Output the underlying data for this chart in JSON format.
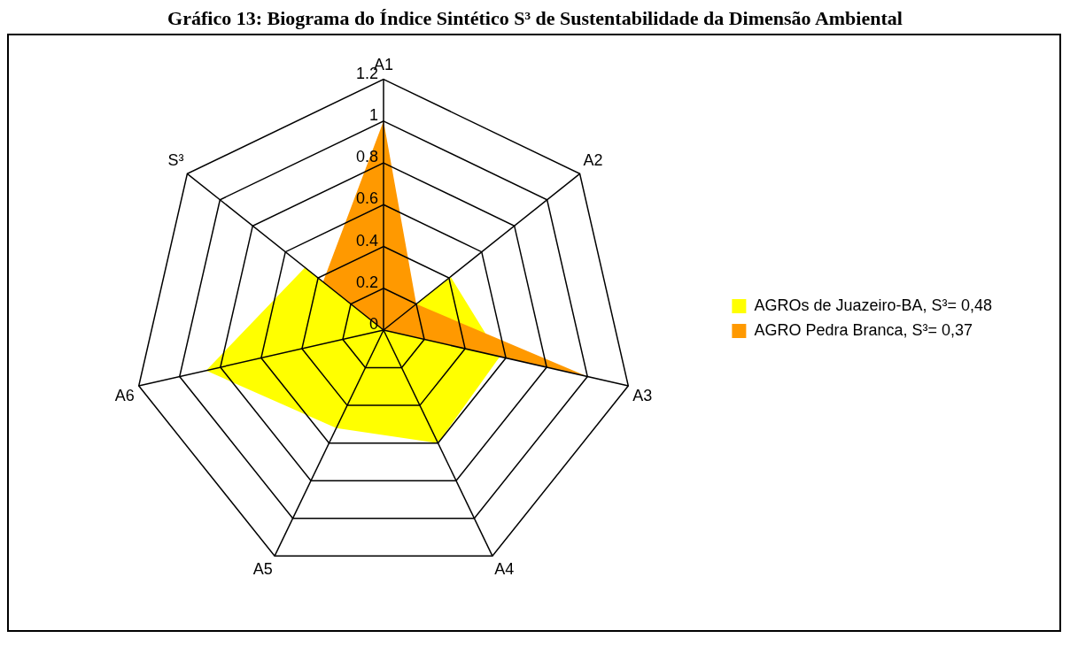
{
  "chart_data": {
    "type": "radar",
    "title": "Gráfico 13: Biograma do Índice Sintético S³ de Sustentabilidade da Dimensão Ambiental",
    "categories": [
      "A1",
      "A2",
      "A3",
      "A4",
      "A5",
      "A6",
      "S³"
    ],
    "series": [
      {
        "name": "AGROs de Juazeiro-BA, S³= 0,48",
        "color": "#ffff00",
        "values": [
          0,
          0.41,
          0.57,
          0.6,
          0.52,
          0.87,
          0.48
        ]
      },
      {
        "name": "AGRO Pedra Branca, S³= 0,37",
        "color": "#ff9900",
        "values": [
          1,
          0.2,
          1,
          0,
          0,
          0,
          0.37
        ]
      }
    ],
    "ylim": [
      0,
      1.2
    ],
    "yticks": [
      0,
      0.2,
      0.4,
      0.6,
      0.8,
      1,
      1.2
    ],
    "grid": true,
    "legend": "right",
    "marker": "none"
  }
}
